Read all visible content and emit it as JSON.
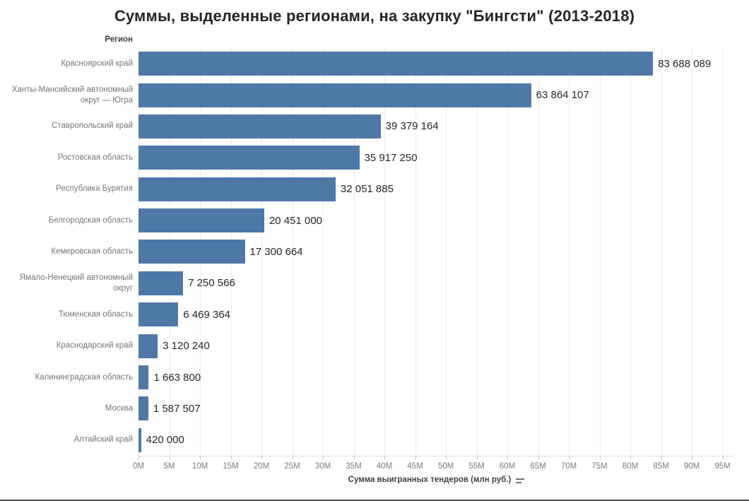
{
  "title": "Суммы, выделенные регионами, на закупку \"Бингсти\" (2013-2018)",
  "region_header": "Регион",
  "xaxis_title": "Сумма выигранных тендеров (млн руб.)",
  "sort_icon": "sort-descending-icon",
  "colors": {
    "bar": "#4e79a7",
    "title_text": "#252525",
    "region_label": "#757575",
    "value_label": "#262626",
    "gridline": "#ececec",
    "tick_label": "#7b7b7b"
  },
  "chart_data": {
    "type": "bar",
    "orientation": "horizontal",
    "title": "Суммы, выделенные регионами, на закупку \"Бингсти\" (2013-2018)",
    "ylabel": "Регион",
    "xlabel": "Сумма выигранных тендеров (млн руб.)",
    "grid": true,
    "xlim": [
      0,
      97000000
    ],
    "x_ticks": [
      "0M",
      "5M",
      "10M",
      "15M",
      "20M",
      "25M",
      "30M",
      "35M",
      "40M",
      "45M",
      "50M",
      "55M",
      "60M",
      "65M",
      "70M",
      "75M",
      "80M",
      "85M",
      "90M",
      "95M"
    ],
    "x_tick_step_millions": 5,
    "categories": [
      "Красноярский край",
      "Ханты-Мансийский автономный округ — Югра",
      "Ставропольский край",
      "Ростовская область",
      "Республика Бурятия",
      "Белгородская область",
      "Кемеровская область",
      "Ямало-Ненецкий автономный округ",
      "Тюменская область",
      "Краснодарский край",
      "Калининградская область",
      "Москва",
      "Алтайский край"
    ],
    "values": [
      83688089,
      63864107,
      39379164,
      35917250,
      32051885,
      20451000,
      17300664,
      7250566,
      6469364,
      3120240,
      1663800,
      1587507,
      420000
    ],
    "value_labels": [
      "83 688 089",
      "63 864 107",
      "39 379 164",
      "35 917 250",
      "32 051 885",
      "20 451 000",
      "17 300 664",
      "7 250 566",
      "6 469 364",
      "3 120 240",
      "1 663 800",
      "1 587 507",
      "420 000"
    ]
  }
}
